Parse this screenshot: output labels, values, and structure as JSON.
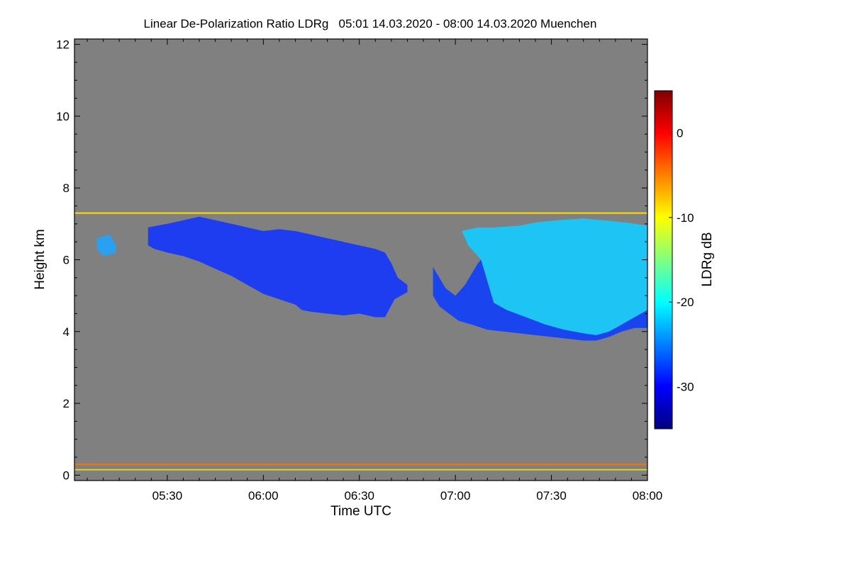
{
  "chart_data": {
    "type": "heatmap",
    "title": "Linear De-Polarization Ratio LDRg   05:01 14.03.2020 - 08:00 14.03.2020 Muenchen",
    "xlabel": "Time UTC",
    "ylabel": "Height km",
    "colorbar_label": "LDRg dB",
    "x_unit": "minutes after 05:00 UTC",
    "xlim": [
      1,
      180
    ],
    "ylim": [
      -0.15,
      12.15
    ],
    "clim": [
      -35,
      5
    ],
    "x_ticks": [
      {
        "value": 30,
        "label": "05:30"
      },
      {
        "value": 60,
        "label": "06:00"
      },
      {
        "value": 90,
        "label": "06:30"
      },
      {
        "value": 120,
        "label": "07:00"
      },
      {
        "value": 150,
        "label": "07:30"
      },
      {
        "value": 180,
        "label": "08:00"
      }
    ],
    "y_ticks": [
      {
        "value": 0,
        "label": "0"
      },
      {
        "value": 2,
        "label": "2"
      },
      {
        "value": 4,
        "label": "4"
      },
      {
        "value": 6,
        "label": "6"
      },
      {
        "value": 8,
        "label": "8"
      },
      {
        "value": 10,
        "label": "10"
      },
      {
        "value": 12,
        "label": "12"
      }
    ],
    "colorbar_ticks": [
      {
        "value": 0,
        "label": "0"
      },
      {
        "value": -10,
        "label": "-10"
      },
      {
        "value": -20,
        "label": "-20"
      },
      {
        "value": -30,
        "label": "-30"
      }
    ],
    "colormap": [
      "#00007f",
      "#0000ff",
      "#0080ff",
      "#00ffff",
      "#80ff80",
      "#ffff00",
      "#ff8000",
      "#ff0000",
      "#7f0000"
    ],
    "background_color": "#808080",
    "cloud_regions": [
      {
        "name": "cloud-layer-1",
        "ldr_db": -28,
        "color": "#1e3cf0",
        "top": [
          [
            24,
            6.9
          ],
          [
            30,
            7.0
          ],
          [
            35,
            7.1
          ],
          [
            40,
            7.2
          ],
          [
            45,
            7.1
          ],
          [
            50,
            7.0
          ],
          [
            55,
            6.9
          ],
          [
            60,
            6.8
          ],
          [
            65,
            6.85
          ],
          [
            70,
            6.8
          ],
          [
            75,
            6.7
          ],
          [
            80,
            6.6
          ],
          [
            85,
            6.5
          ],
          [
            90,
            6.4
          ],
          [
            95,
            6.3
          ],
          [
            98,
            6.2
          ],
          [
            100,
            5.9
          ],
          [
            102,
            5.5
          ],
          [
            105,
            5.3
          ]
        ],
        "bottom": [
          [
            105,
            5.1
          ],
          [
            101,
            4.9
          ],
          [
            98,
            4.4
          ],
          [
            95,
            4.4
          ],
          [
            90,
            4.5
          ],
          [
            85,
            4.45
          ],
          [
            80,
            4.5
          ],
          [
            75,
            4.55
          ],
          [
            72,
            4.6
          ],
          [
            70,
            4.75
          ],
          [
            65,
            4.9
          ],
          [
            60,
            5.05
          ],
          [
            55,
            5.3
          ],
          [
            50,
            5.55
          ],
          [
            45,
            5.75
          ],
          [
            40,
            5.95
          ],
          [
            35,
            6.1
          ],
          [
            30,
            6.2
          ],
          [
            26,
            6.3
          ],
          [
            24,
            6.4
          ]
        ]
      },
      {
        "name": "cloud-layer-2-outer",
        "ldr_db": -27,
        "color": "#1a44ee",
        "top": [
          [
            113,
            5.8
          ],
          [
            117,
            5.2
          ],
          [
            120,
            5.0
          ],
          [
            123,
            5.3
          ],
          [
            127,
            5.9
          ],
          [
            130,
            6.2
          ],
          [
            133,
            6.5
          ],
          [
            135,
            6.7
          ],
          [
            140,
            6.85
          ],
          [
            145,
            6.95
          ],
          [
            150,
            7.0
          ],
          [
            155,
            7.05
          ],
          [
            160,
            7.1
          ],
          [
            165,
            7.05
          ],
          [
            170,
            7.0
          ],
          [
            175,
            7.0
          ],
          [
            180,
            6.9
          ]
        ],
        "bottom": [
          [
            180,
            4.1
          ],
          [
            176,
            4.1
          ],
          [
            172,
            4.0
          ],
          [
            168,
            3.85
          ],
          [
            164,
            3.75
          ],
          [
            160,
            3.75
          ],
          [
            155,
            3.8
          ],
          [
            150,
            3.85
          ],
          [
            145,
            3.9
          ],
          [
            140,
            3.95
          ],
          [
            135,
            4.0
          ],
          [
            130,
            4.05
          ],
          [
            125,
            4.2
          ],
          [
            121,
            4.3
          ],
          [
            118,
            4.5
          ],
          [
            115,
            4.7
          ],
          [
            113,
            5.0
          ]
        ]
      },
      {
        "name": "cloud-layer-2-inner",
        "ldr_db": -22,
        "color": "#1ec4f4",
        "top": [
          [
            122,
            6.8
          ],
          [
            127,
            6.9
          ],
          [
            132,
            6.9
          ],
          [
            140,
            6.95
          ],
          [
            146,
            7.05
          ],
          [
            152,
            7.1
          ],
          [
            160,
            7.15
          ],
          [
            166,
            7.1
          ],
          [
            172,
            7.05
          ],
          [
            180,
            6.95
          ]
        ],
        "bottom": [
          [
            180,
            4.6
          ],
          [
            176,
            4.4
          ],
          [
            172,
            4.2
          ],
          [
            168,
            4.0
          ],
          [
            164,
            3.9
          ],
          [
            160,
            3.95
          ],
          [
            154,
            4.05
          ],
          [
            148,
            4.2
          ],
          [
            142,
            4.4
          ],
          [
            136,
            4.6
          ],
          [
            132,
            4.8
          ],
          [
            130,
            5.4
          ],
          [
            128,
            6.0
          ],
          [
            124,
            6.4
          ]
        ]
      },
      {
        "name": "cloud-fragment",
        "ldr_db": -24,
        "color": "#2aa0f0",
        "top": [
          [
            8,
            6.6
          ],
          [
            12,
            6.7
          ],
          [
            14,
            6.4
          ]
        ],
        "bottom": [
          [
            14,
            6.2
          ],
          [
            10,
            6.1
          ],
          [
            8,
            6.3
          ]
        ]
      }
    ],
    "layers": [
      {
        "name": "layer-7-3km",
        "height_km": 7.3,
        "ldr_db": -12,
        "color": "#ffe000",
        "x_range": [
          1,
          180
        ]
      },
      {
        "name": "surface-layer",
        "height_km": 0.3,
        "ldr_db": -5,
        "color": "#ff7000",
        "x_range": [
          1,
          180
        ]
      },
      {
        "name": "near-surface-clutter",
        "height_km": 0.15,
        "ldr_db": -12,
        "color": "#e0d020",
        "x_range": [
          1,
          180
        ]
      }
    ]
  }
}
